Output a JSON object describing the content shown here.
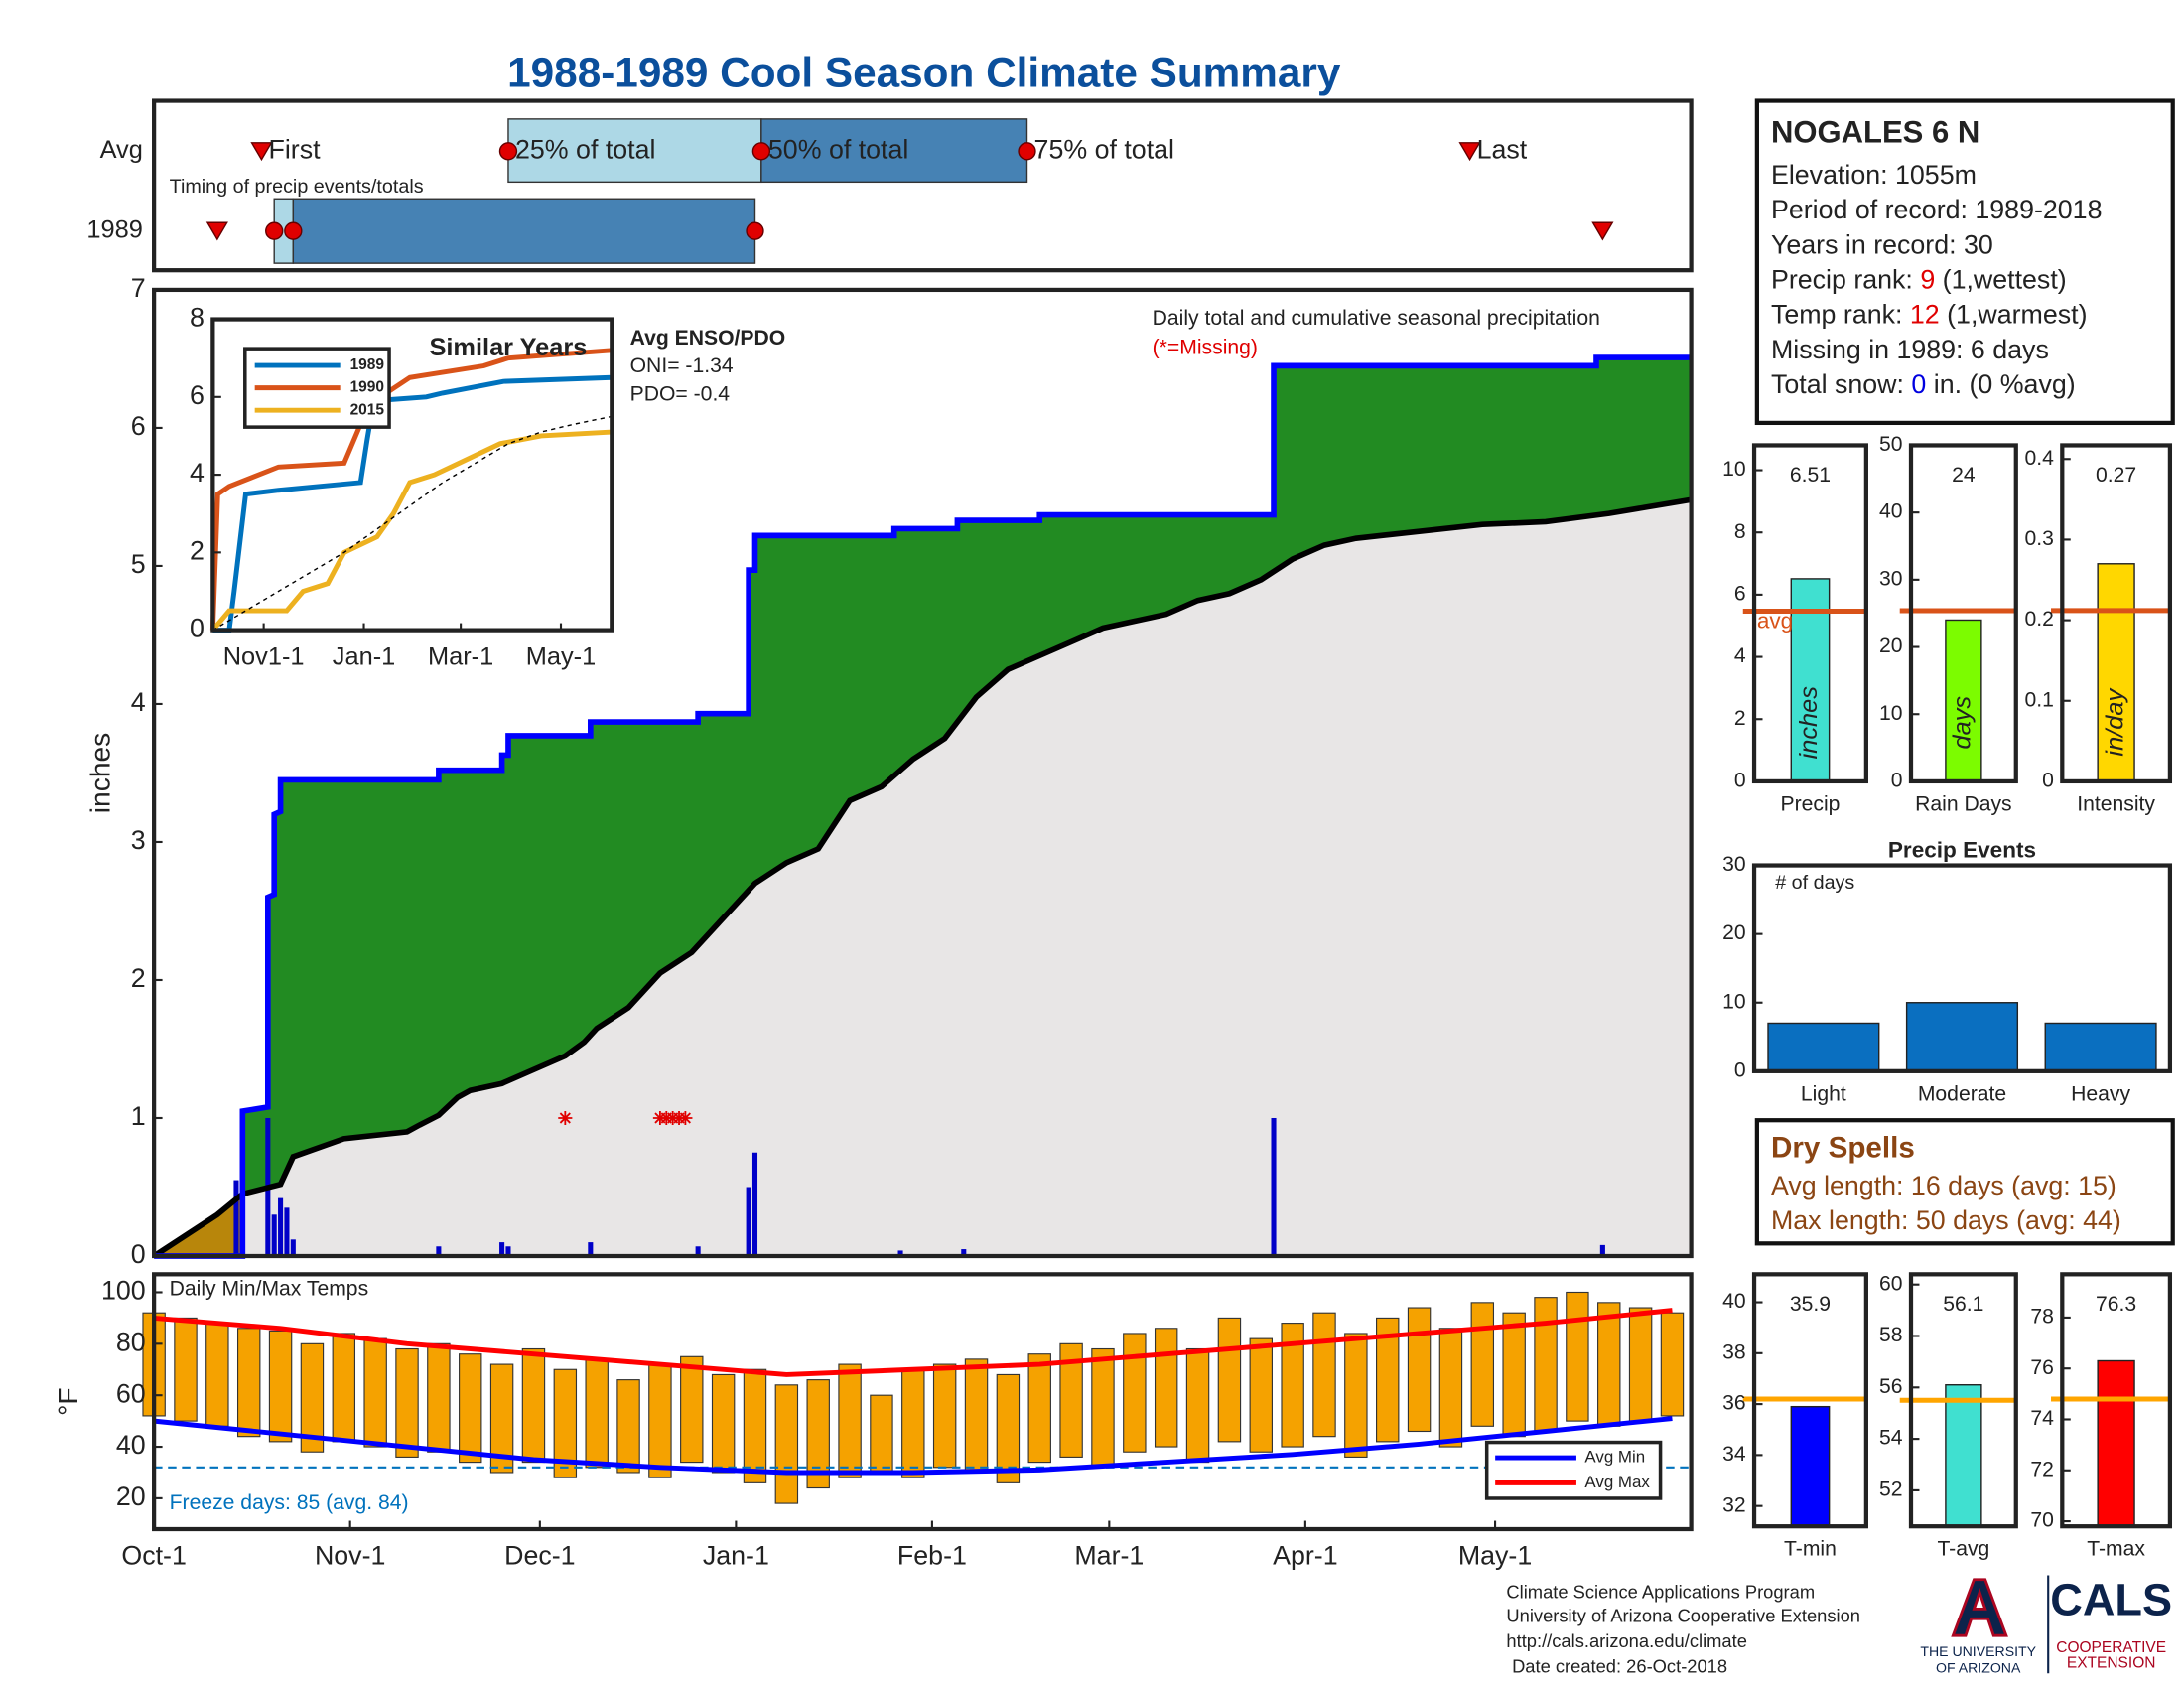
{
  "title": "1988-1989 Cool Season Climate Summary",
  "station": {
    "name": "NOGALES 6 N",
    "lines": [
      "Elevation: 1055m",
      "Period of record: 1989-2018",
      "Years in record: 30"
    ],
    "precip_rank": {
      "label": "Precip rank:",
      "value": 9,
      "note": "(1,wettest)"
    },
    "temp_rank": {
      "label": "Temp rank:",
      "value": 12,
      "note": "(1,warmest)"
    },
    "missing": "Missing in 1989: 6 days",
    "snow": {
      "label": "Total snow:",
      "value": 0,
      "note": "in. (0 %avg)"
    }
  },
  "dry_spells": {
    "title": "Dry Spells",
    "lines": [
      "Avg length: 16 days (avg: 15)",
      "Max length: 50 days (avg: 44)"
    ]
  },
  "footer": [
    "Climate Science Applications Program",
    "University of Arizona Cooperative Extension",
    "http://cals.arizona.edu/climate",
    "Date created: 26-Oct-2018"
  ],
  "logo": {
    "university": [
      "THE UNIVERSITY",
      "OF ARIZONA"
    ],
    "cals": "CALS",
    "extension": [
      "COOPERATIVE",
      "EXTENSION"
    ]
  },
  "chart_data": [
    {
      "type": "timing",
      "xlim": [
        0,
        243
      ],
      "annotation": "Timing of precip events/totals",
      "point_labels": [
        "First",
        "25% of total",
        "50% of total",
        "75% of total",
        "Last"
      ],
      "colors": [
        "#add8e6",
        "#4682b4"
      ],
      "marker_color": "#e00000",
      "rows": [
        {
          "name": "Avg",
          "values": [
            17,
            56,
            96,
            138,
            208
          ]
        },
        {
          "name": "1989",
          "values": [
            10,
            19,
            22,
            95,
            229
          ]
        }
      ]
    },
    {
      "type": "area",
      "xlim": [
        0,
        243
      ],
      "ylim": [
        0,
        7
      ],
      "yticks": [
        0,
        1,
        2,
        3,
        4,
        5,
        6,
        7
      ],
      "ylabel": "inches",
      "annotation": "Daily total and cumulative seasonal precipitation",
      "missing_label": "(*=Missing)",
      "fill_colors": {
        "above": "#228b22",
        "below": "#b8860b",
        "base": "#e8e6e6"
      },
      "series": [
        {
          "color": "#0000ff",
          "x": [
            0,
            14,
            14,
            18,
            18,
            19,
            19,
            20,
            20,
            45,
            45,
            55,
            55,
            56,
            56,
            69,
            69,
            86,
            86,
            94,
            94,
            95,
            95,
            117,
            117,
            127,
            127,
            140,
            140,
            177,
            177,
            228,
            228,
            243
          ],
          "values": [
            0,
            0,
            1.05,
            1.08,
            2.6,
            2.62,
            3.2,
            3.22,
            3.45,
            3.45,
            3.52,
            3.52,
            3.63,
            3.63,
            3.77,
            3.77,
            3.87,
            3.87,
            3.93,
            3.93,
            4.97,
            4.97,
            5.22,
            5.22,
            5.27,
            5.27,
            5.33,
            5.33,
            5.37,
            5.37,
            6.45,
            6.45,
            6.51,
            6.51
          ]
        },
        {
          "color": "#000000",
          "x": [
            0,
            10,
            14,
            20,
            22,
            30,
            40,
            42,
            45,
            48,
            50,
            55,
            60,
            65,
            68,
            70,
            75,
            80,
            85,
            90,
            95,
            100,
            105,
            110,
            115,
            120,
            125,
            130,
            135,
            140,
            145,
            150,
            155,
            160,
            165,
            170,
            175,
            180,
            185,
            190,
            200,
            210,
            220,
            230,
            243
          ],
          "values": [
            0,
            0.3,
            0.45,
            0.52,
            0.72,
            0.85,
            0.9,
            0.95,
            1.02,
            1.15,
            1.2,
            1.25,
            1.35,
            1.45,
            1.55,
            1.65,
            1.8,
            2.05,
            2.2,
            2.45,
            2.7,
            2.85,
            2.95,
            3.3,
            3.4,
            3.6,
            3.75,
            4.05,
            4.25,
            4.35,
            4.45,
            4.55,
            4.6,
            4.65,
            4.75,
            4.8,
            4.9,
            5.05,
            5.15,
            5.2,
            5.25,
            5.3,
            5.32,
            5.38,
            5.48
          ]
        }
      ],
      "bars": {
        "color": "#0000c8",
        "x": [
          13,
          14,
          18,
          19,
          20,
          21,
          22,
          45,
          55,
          56,
          69,
          86,
          94,
          95,
          118,
          128,
          177,
          229
        ],
        "values": [
          0.55,
          0.5,
          1.0,
          0.3,
          0.42,
          0.35,
          0.12,
          0.07,
          0.1,
          0.07,
          0.1,
          0.07,
          0.5,
          0.75,
          0.04,
          0.05,
          1.0,
          0.08
        ]
      },
      "missing": {
        "color": "#e00000",
        "x": [
          65,
          80,
          81,
          82,
          83,
          84
        ],
        "values": [
          1,
          1,
          1,
          1,
          1,
          1
        ]
      }
    },
    {
      "type": "line",
      "title": "Similar Years",
      "xlim": [
        0,
        243
      ],
      "ylim": [
        0,
        8
      ],
      "yticks": [
        0,
        2,
        4,
        6,
        8
      ],
      "xticks": [
        {
          "value": 31,
          "label": "Nov1-1"
        },
        {
          "value": 92,
          "label": "Jan-1"
        },
        {
          "value": 151,
          "label": "Mar-1"
        },
        {
          "value": 212,
          "label": "May-1"
        }
      ],
      "annotations": [
        "Avg ENSO/PDO",
        "ONI= -1.34",
        "PDO= -0.4"
      ],
      "series": [
        {
          "name": "1989",
          "color": "#0072bd",
          "x": [
            0,
            10,
            13,
            20,
            40,
            65,
            90,
            94,
            98,
            130,
            140,
            177,
            243
          ],
          "values": [
            0,
            0,
            1,
            3.5,
            3.6,
            3.7,
            3.8,
            4.9,
            5.9,
            6,
            6.1,
            6.4,
            6.5
          ]
        },
        {
          "name": "1990",
          "color": "#d95319",
          "x": [
            0,
            3,
            10,
            40,
            80,
            95,
            120,
            165,
            180,
            243
          ],
          "values": [
            0,
            3.5,
            3.7,
            4.2,
            4.3,
            5.8,
            6.5,
            6.8,
            7,
            7.2
          ]
        },
        {
          "name": "2015",
          "color": "#edb120",
          "x": [
            0,
            10,
            45,
            55,
            70,
            80,
            90,
            100,
            110,
            120,
            135,
            150,
            175,
            200,
            243
          ],
          "values": [
            0,
            0.5,
            0.5,
            1,
            1.2,
            2,
            2.2,
            2.4,
            3,
            3.8,
            4,
            4.3,
            4.8,
            5,
            5.1
          ]
        },
        {
          "color": "#000000",
          "dashed": true,
          "x": [
            0,
            20,
            40,
            60,
            80,
            100,
            120,
            140,
            160,
            180,
            200,
            220,
            243
          ],
          "values": [
            0,
            0.5,
            1,
            1.5,
            2,
            2.6,
            3.2,
            3.8,
            4.3,
            4.8,
            5.1,
            5.3,
            5.5
          ]
        }
      ]
    },
    {
      "type": "bar",
      "categories": [
        "Precip"
      ],
      "values": [
        6.51
      ],
      "show_values": true,
      "color": "#40e0d0",
      "ylim": [
        0,
        10.8
      ],
      "yticks": [
        0,
        2,
        4,
        6,
        8,
        10
      ],
      "avg": 5.47,
      "avg_color": "#d95319",
      "avg_label": "avg",
      "unit_label": "inches"
    },
    {
      "type": "bar",
      "categories": [
        "Rain Days"
      ],
      "values": [
        24
      ],
      "show_values": true,
      "color": "#7cfc00",
      "ylim": [
        0,
        50
      ],
      "yticks": [
        0,
        10,
        20,
        30,
        40,
        50
      ],
      "avg": 25.4,
      "avg_color": "#d95319",
      "unit_label": "days"
    },
    {
      "type": "bar",
      "categories": [
        "Intensity"
      ],
      "values": [
        0.27
      ],
      "show_values": true,
      "color": "#ffd700",
      "ylim": [
        0,
        0.417
      ],
      "yticks": [
        0,
        0.1,
        0.2,
        0.3,
        0.4
      ],
      "avg": 0.212,
      "avg_color": "#d95319",
      "unit_label": "in/day"
    },
    {
      "type": "bar",
      "title": "Precip Events",
      "annotation": "# of days",
      "categories": [
        "Light",
        "Moderate",
        "Heavy"
      ],
      "values": [
        7,
        10,
        7
      ],
      "color": "#0a6fc0",
      "ylim": [
        0,
        30
      ],
      "yticks": [
        0,
        10,
        20,
        30
      ]
    },
    {
      "type": "rangebar",
      "title": "Daily Min/Max Temps",
      "ylabel": "°F",
      "color": "#f5a200",
      "xlim": [
        0,
        243
      ],
      "ylim": [
        8,
        107
      ],
      "yticks": [
        20,
        40,
        60,
        80,
        100
      ],
      "xticks": [
        {
          "value": 0,
          "label": "Oct-1"
        },
        {
          "value": 31,
          "label": "Nov-1"
        },
        {
          "value": 61,
          "label": "Dec-1"
        },
        {
          "value": 92,
          "label": "Jan-1"
        },
        {
          "value": 123,
          "label": "Feb-1"
        },
        {
          "value": 151,
          "label": "Mar-1"
        },
        {
          "value": 182,
          "label": "Apr-1"
        },
        {
          "value": 212,
          "label": "May-1"
        }
      ],
      "freeze_line": 32,
      "freeze_color": "#0072bd",
      "annotation": "Freeze days: 85 (avg. 84)",
      "x": [
        0,
        5,
        10,
        15,
        20,
        25,
        30,
        35,
        40,
        45,
        50,
        55,
        60,
        65,
        70,
        75,
        80,
        85,
        90,
        95,
        100,
        105,
        110,
        115,
        120,
        125,
        130,
        135,
        140,
        145,
        150,
        155,
        160,
        165,
        170,
        175,
        180,
        185,
        190,
        195,
        200,
        205,
        210,
        215,
        220,
        225,
        230,
        235,
        240
      ],
      "max": [
        92,
        90,
        88,
        86,
        85,
        80,
        84,
        82,
        78,
        80,
        76,
        72,
        78,
        70,
        74,
        66,
        72,
        75,
        68,
        70,
        64,
        66,
        72,
        60,
        70,
        72,
        74,
        68,
        76,
        80,
        78,
        84,
        86,
        78,
        90,
        82,
        88,
        92,
        84,
        90,
        94,
        86,
        96,
        92,
        98,
        100,
        96,
        94,
        92
      ],
      "min": [
        52,
        50,
        48,
        44,
        42,
        38,
        42,
        40,
        36,
        38,
        34,
        30,
        34,
        28,
        32,
        30,
        28,
        34,
        30,
        26,
        18,
        24,
        28,
        30,
        28,
        32,
        30,
        26,
        34,
        36,
        32,
        38,
        40,
        34,
        42,
        38,
        40,
        44,
        36,
        42,
        46,
        40,
        48,
        44,
        46,
        50,
        48,
        50,
        52
      ],
      "series": [
        {
          "name": "Avg Min",
          "color": "#0000ff",
          "x": [
            0,
            20,
            40,
            60,
            80,
            100,
            120,
            140,
            160,
            180,
            200,
            220,
            240
          ],
          "values": [
            50,
            45,
            40,
            35,
            32,
            30,
            30,
            31,
            34,
            37,
            41,
            46,
            51
          ]
        },
        {
          "name": "Avg Max",
          "color": "#ff0000",
          "x": [
            0,
            20,
            40,
            60,
            80,
            100,
            120,
            140,
            160,
            180,
            200,
            220,
            240
          ],
          "values": [
            90,
            86,
            80,
            76,
            72,
            68,
            70,
            72,
            76,
            80,
            84,
            88,
            93
          ]
        }
      ]
    },
    {
      "type": "bar",
      "categories": [
        "T-min"
      ],
      "values": [
        35.9
      ],
      "show_values": true,
      "color": "#0000ff",
      "ylim": [
        31.2,
        41.1
      ],
      "yticks": [
        32,
        34,
        36,
        38,
        40
      ],
      "avg": 36.2,
      "avg_color": "#ffa500"
    },
    {
      "type": "bar",
      "categories": [
        "T-avg"
      ],
      "values": [
        56.1
      ],
      "show_values": true,
      "color": "#40e0d0",
      "ylim": [
        50.6,
        60.4
      ],
      "yticks": [
        52,
        54,
        56,
        58,
        60
      ],
      "avg": 55.5,
      "avg_color": "#ffa500"
    },
    {
      "type": "bar",
      "categories": [
        "T-max"
      ],
      "values": [
        76.3
      ],
      "show_values": true,
      "color": "#ff0000",
      "ylim": [
        69.8,
        79.7
      ],
      "yticks": [
        70,
        72,
        74,
        76,
        78
      ],
      "avg": 74.8,
      "avg_color": "#ffa500"
    }
  ]
}
